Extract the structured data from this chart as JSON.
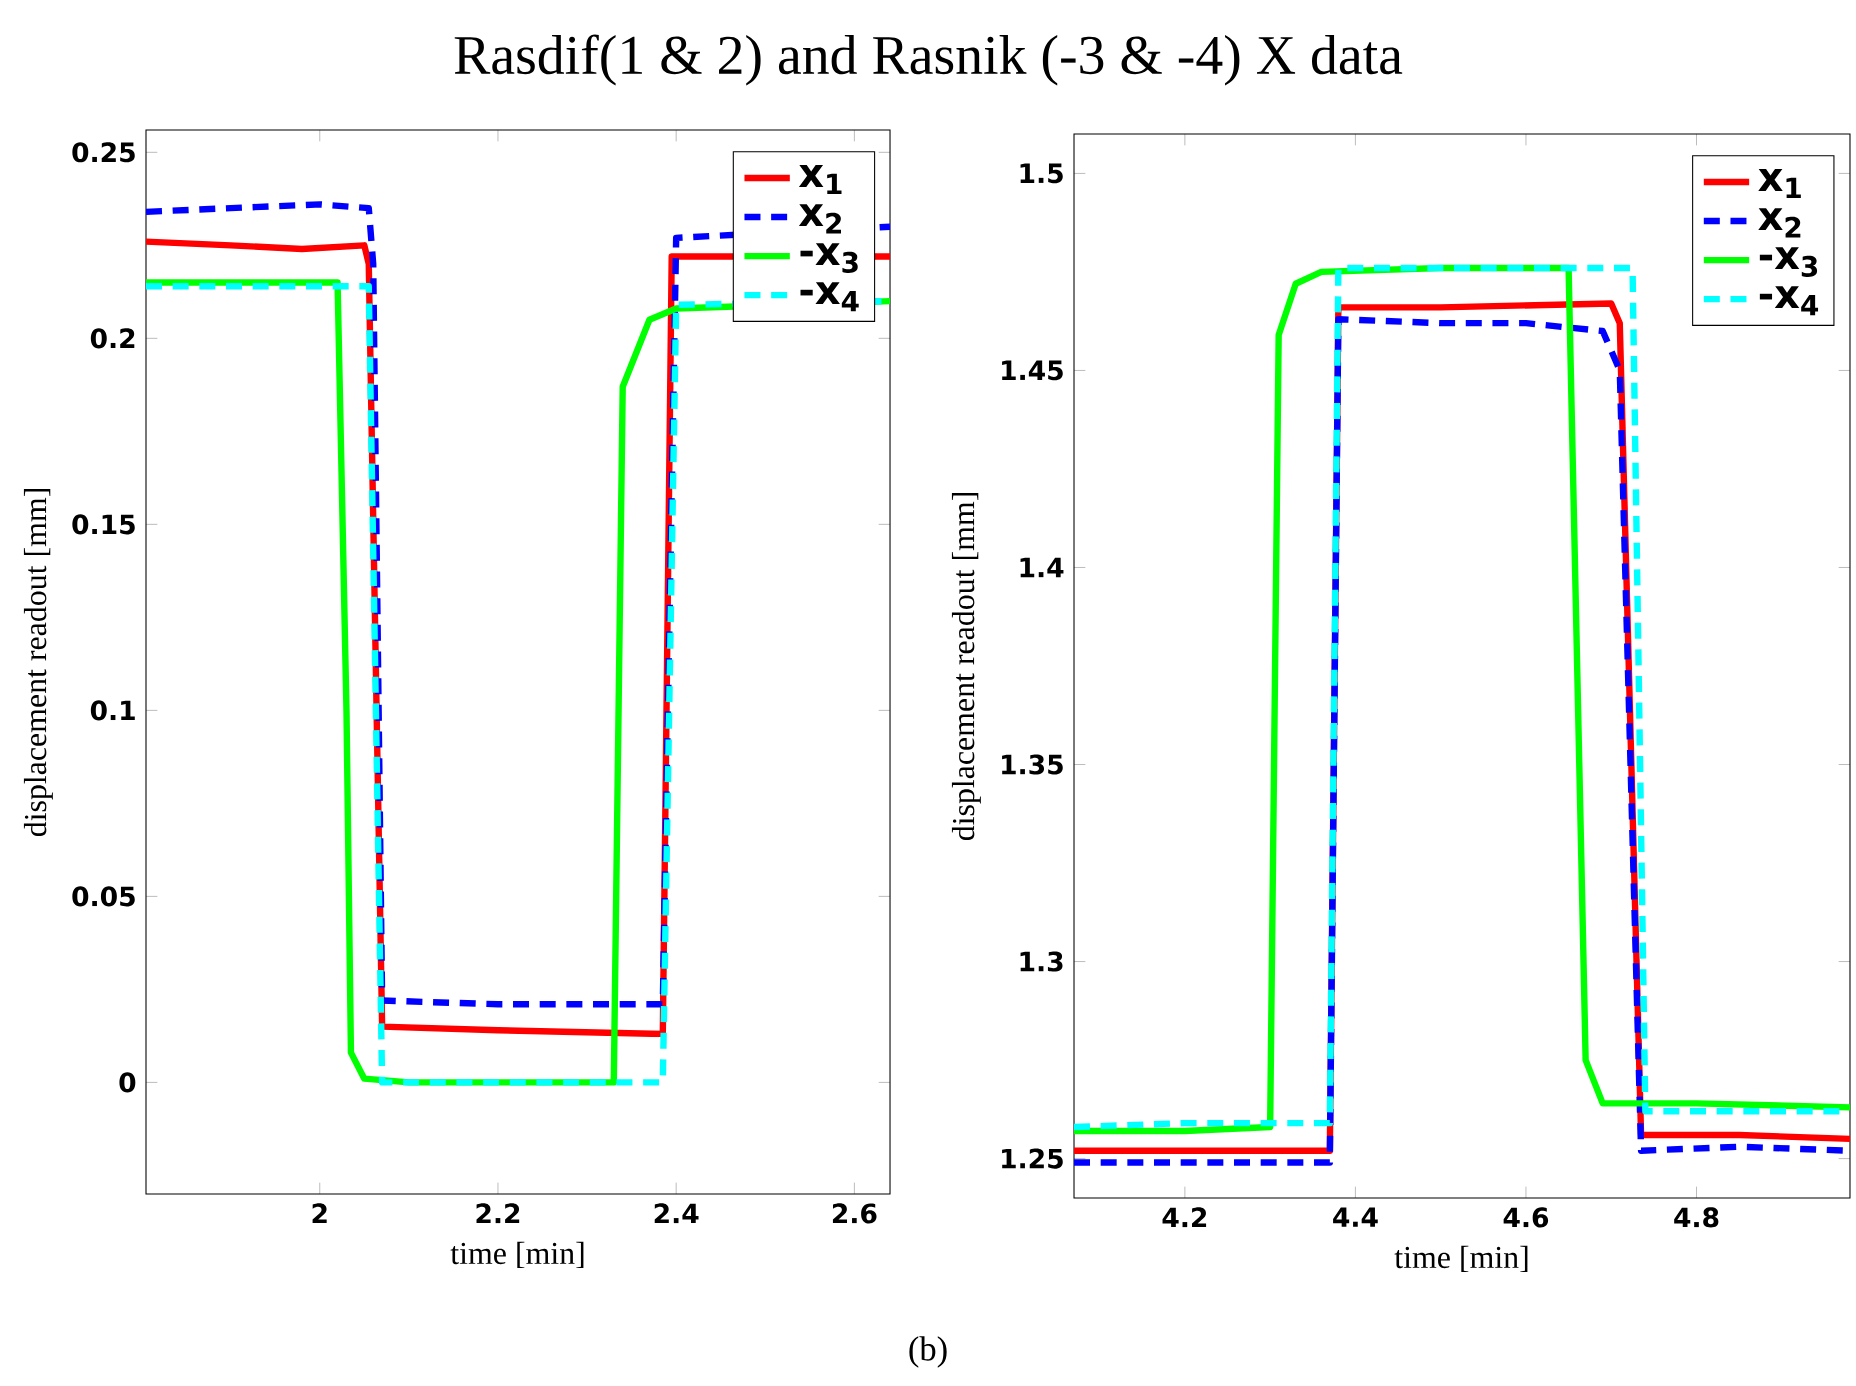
{
  "chart_data": [
    {
      "type": "line",
      "title": "Rasdif(1 & 2) and Rasnik (-3 & -4) X data",
      "xlabel": "time [min]",
      "ylabel": "displacement readout [mm]",
      "xlim": [
        1.805,
        2.64
      ],
      "ylim": [
        -0.03,
        0.256
      ],
      "xticks": [
        2,
        2.2,
        2.4,
        2.6
      ],
      "yticks": [
        0,
        0.05,
        0.1,
        0.15,
        0.2,
        0.25
      ],
      "legend": "top right",
      "grid": false,
      "series": [
        {
          "name": "x$_{1}$",
          "color": "#ff0000",
          "line_style": "solid",
          "x": [
            1.805,
            1.9,
            1.98,
            2.05,
            2.055,
            2.07,
            2.2,
            2.385,
            2.395,
            2.64
          ],
          "values": [
            0.226,
            0.225,
            0.224,
            0.225,
            0.22,
            0.015,
            0.014,
            0.013,
            0.222,
            0.222
          ]
        },
        {
          "name": "x$_{2}$",
          "color": "#0000ff",
          "line_style": "dashed",
          "x": [
            1.805,
            1.9,
            2.0,
            2.055,
            2.06,
            2.07,
            2.2,
            2.385,
            2.4,
            2.64
          ],
          "values": [
            0.234,
            0.235,
            0.236,
            0.235,
            0.22,
            0.022,
            0.021,
            0.021,
            0.227,
            0.23
          ]
        },
        {
          "name": "-x$_{3}$",
          "color": "#00ff00",
          "line_style": "solid",
          "x": [
            1.805,
            1.9,
            2.02,
            2.03,
            2.035,
            2.05,
            2.1,
            2.33,
            2.34,
            2.37,
            2.4,
            2.64
          ],
          "values": [
            0.215,
            0.215,
            0.215,
            0.1,
            0.008,
            0.001,
            0.0,
            0.0,
            0.187,
            0.205,
            0.208,
            0.21
          ]
        },
        {
          "name": "-x$_{4}$",
          "color": "#00ffff",
          "line_style": "dashed",
          "x": [
            1.805,
            1.9,
            2.055,
            2.07,
            2.2,
            2.385,
            2.4,
            2.64
          ],
          "values": [
            0.214,
            0.214,
            0.214,
            0.0,
            0.0,
            0.0,
            0.209,
            0.21
          ]
        }
      ]
    },
    {
      "type": "line",
      "xlabel": "time [min]",
      "ylabel": "displacement readout [mm]",
      "xlim": [
        4.07,
        4.98
      ],
      "ylim": [
        1.24,
        1.51
      ],
      "xticks": [
        4.2,
        4.4,
        4.6,
        4.8
      ],
      "yticks": [
        1.25,
        1.3,
        1.35,
        1.4,
        1.45,
        1.5
      ],
      "legend": "top right",
      "grid": false,
      "annotations": [
        "(b)"
      ],
      "series": [
        {
          "name": "x$_{1}$",
          "color": "#ff0000",
          "line_style": "solid",
          "x": [
            4.07,
            4.2,
            4.37,
            4.38,
            4.5,
            4.7,
            4.71,
            4.735,
            4.85,
            4.98
          ],
          "values": [
            1.252,
            1.252,
            1.252,
            1.466,
            1.466,
            1.467,
            1.462,
            1.256,
            1.256,
            1.255
          ]
        },
        {
          "name": "x$_{2}$",
          "color": "#0000ff",
          "line_style": "dashed",
          "x": [
            4.07,
            4.2,
            4.37,
            4.38,
            4.5,
            4.6,
            4.69,
            4.71,
            4.735,
            4.85,
            4.98
          ],
          "values": [
            1.249,
            1.249,
            1.249,
            1.463,
            1.462,
            1.462,
            1.46,
            1.45,
            1.252,
            1.253,
            1.252
          ]
        },
        {
          "name": "-x$_{3}$",
          "color": "#00ff00",
          "line_style": "solid",
          "x": [
            4.07,
            4.2,
            4.3,
            4.31,
            4.33,
            4.36,
            4.5,
            4.65,
            4.67,
            4.69,
            4.8,
            4.98
          ],
          "values": [
            1.257,
            1.257,
            1.258,
            1.459,
            1.472,
            1.475,
            1.476,
            1.476,
            1.275,
            1.264,
            1.264,
            1.263
          ]
        },
        {
          "name": "-x$_{4}$",
          "color": "#00ffff",
          "line_style": "dashed",
          "x": [
            4.07,
            4.2,
            4.37,
            4.38,
            4.5,
            4.725,
            4.74,
            4.85,
            4.98
          ],
          "values": [
            1.258,
            1.259,
            1.259,
            1.476,
            1.476,
            1.476,
            1.262,
            1.262,
            1.262
          ]
        }
      ]
    }
  ]
}
